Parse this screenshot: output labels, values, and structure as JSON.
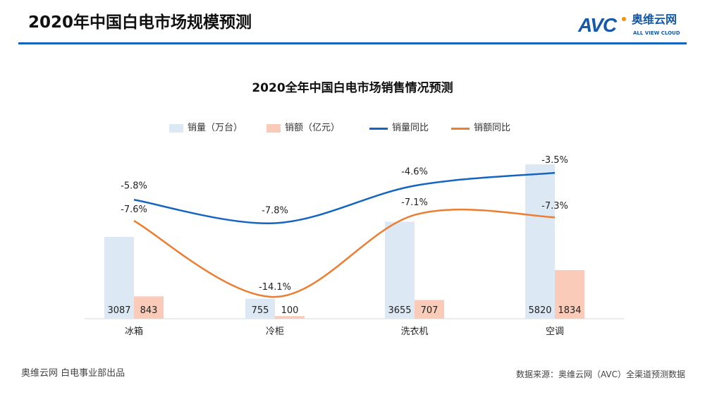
{
  "header": {
    "title": "2020年中国白电市场规模预测",
    "logo_text": "AVC",
    "logo_cn": "奥维云网",
    "logo_en": "ALL VIEW CLOUD"
  },
  "footer": {
    "left": "奥维云网 白电事业部出品",
    "right": "数据来源：奥维云网（AVC）全渠道预测数据"
  },
  "colors": {
    "volume": "#dce8f4",
    "revenue": "#f9cbb8",
    "volume_yoy": "#1565c0",
    "revenue_yoy": "#ed7d31",
    "accent": "#1565c0"
  },
  "chart_data": {
    "type": "bar+line",
    "title": "2020全年中国白电市场销售情况预测",
    "legend_position": "top",
    "grid": false,
    "categories": [
      "冰箱",
      "冷柜",
      "洗衣机",
      "空调"
    ],
    "series": [
      {
        "name": "销量（万台）",
        "type": "bar",
        "values": [
          3087,
          755,
          3655,
          5820
        ]
      },
      {
        "name": "销额（亿元）",
        "type": "bar",
        "values": [
          843,
          100,
          707,
          1834
        ]
      },
      {
        "name": "销量同比",
        "type": "line",
        "values": [
          -5.8,
          -7.8,
          -4.6,
          -3.5
        ],
        "labels": [
          "-5.8%",
          "-7.8%",
          "-4.6%",
          "-3.5%"
        ]
      },
      {
        "name": "销额同比",
        "type": "line",
        "values": [
          -7.6,
          -14.1,
          -7.1,
          -7.3
        ],
        "labels": [
          "-7.6%",
          "-14.1%",
          "-7.1%",
          "-7.3%"
        ]
      }
    ]
  }
}
